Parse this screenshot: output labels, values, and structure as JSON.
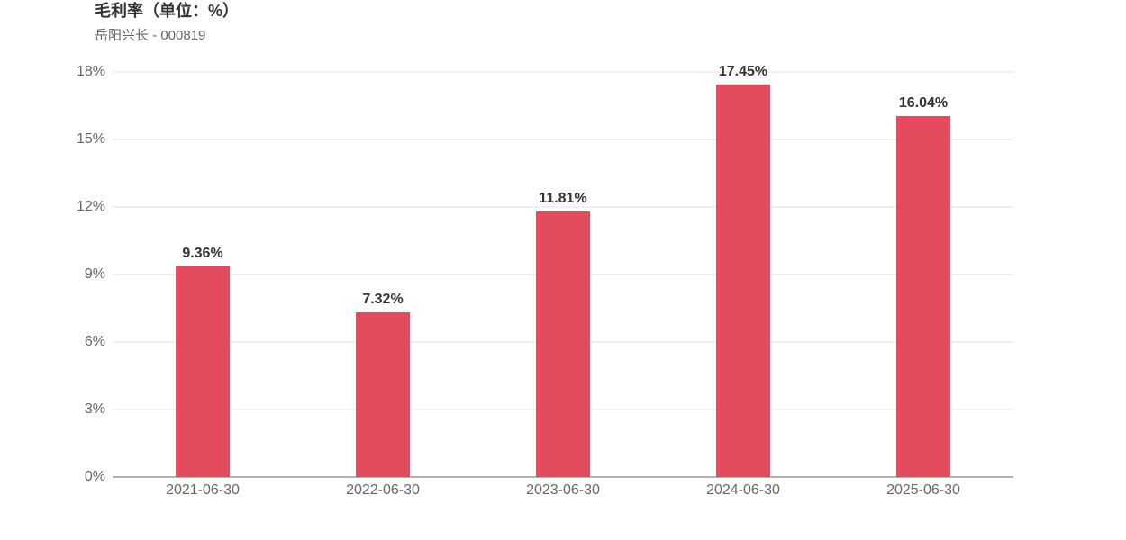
{
  "chart_data": {
    "type": "bar",
    "title": "毛利率（单位：%）",
    "subtitle": "岳阳兴长 - 000819",
    "categories": [
      "2021-06-30",
      "2022-06-30",
      "2023-06-30",
      "2024-06-30",
      "2025-06-30"
    ],
    "values": [
      9.36,
      7.32,
      11.81,
      17.45,
      16.04
    ],
    "value_labels": [
      "9.36%",
      "7.32%",
      "11.81%",
      "17.45%",
      "16.04%"
    ],
    "color": "#e54b5f",
    "ylim": [
      0,
      18
    ],
    "yticks": [
      {
        "value": 0,
        "label": "0%"
      },
      {
        "value": 3,
        "label": "3%"
      },
      {
        "value": 6,
        "label": "6%"
      },
      {
        "value": 9,
        "label": "9%"
      },
      {
        "value": 12,
        "label": "12%"
      },
      {
        "value": 15,
        "label": "15%"
      },
      {
        "value": 18,
        "label": "18%"
      }
    ],
    "grid": true
  }
}
